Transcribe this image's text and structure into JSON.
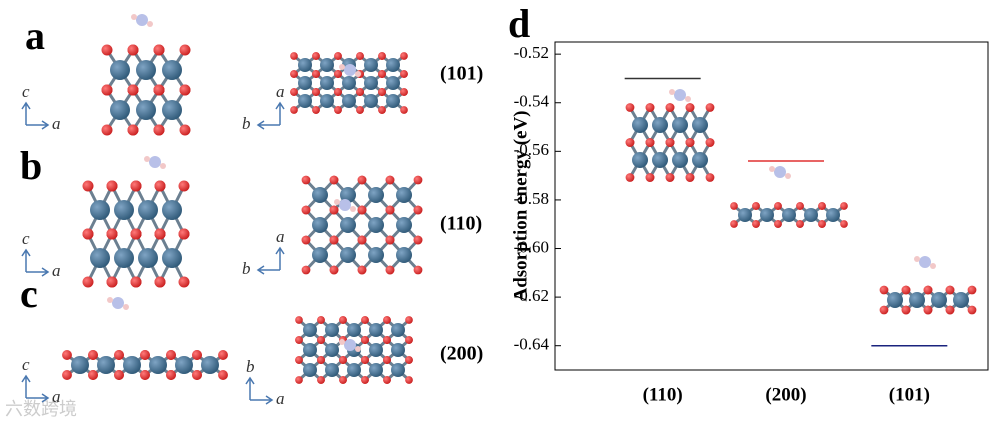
{
  "panels": [
    {
      "label": "a",
      "facet": "(101)",
      "left_axes": [
        "c",
        "a"
      ],
      "right_axes": [
        "a",
        "b"
      ]
    },
    {
      "label": "b",
      "facet": "(110)",
      "left_axes": [
        "c",
        "a"
      ],
      "right_axes": [
        "a",
        "b"
      ]
    },
    {
      "label": "c",
      "facet": "(200)",
      "left_axes": [
        "c",
        "a"
      ],
      "right_axes": [
        "b",
        "a"
      ]
    }
  ],
  "watermark": "六数跨境",
  "chart_data": {
    "type": "level",
    "panel": "d",
    "y_label": "Adsorption energy (eV)",
    "categories": [
      "(110)",
      "(200)",
      "(101)"
    ],
    "values": [
      -0.53,
      -0.564,
      -0.64
    ],
    "colors": [
      "#333333",
      "#e03030",
      "#1a237e"
    ],
    "ylim": [
      -0.65,
      -0.515
    ],
    "yticks": [
      -0.52,
      -0.54,
      -0.56,
      -0.58,
      {
        "value": -0.6,
        "label": "-0.60"
      },
      -0.62,
      -0.64
    ]
  }
}
